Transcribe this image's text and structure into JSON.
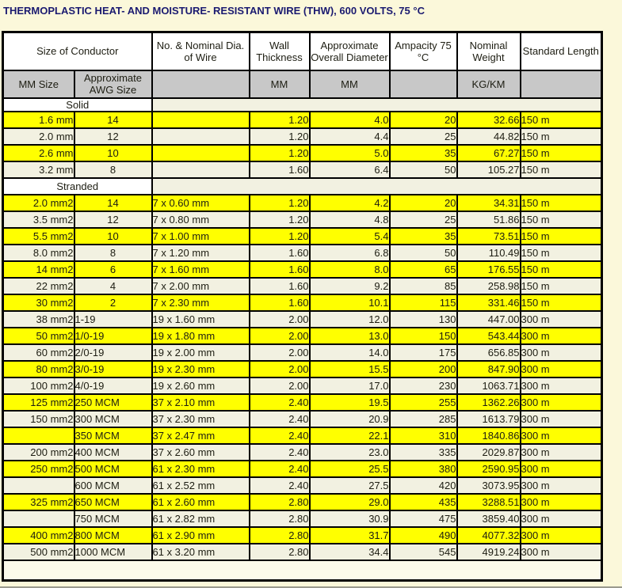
{
  "title": "THERMOPLASTIC HEAT- AND MOISTURE- RESISTANT WIRE (THW), 600 VOLTS, 75 °C",
  "colors": {
    "page_bg": "#fbf8da",
    "highlight_yellow": "#ffff00",
    "row_cream": "#f2f1e1",
    "subheader_gray": "#c8c8c8",
    "header_white": "#ffffff",
    "border_black": "#000000",
    "title_navy": "#1a1a70"
  },
  "table": {
    "headers": {
      "size_of_conductor": "Size of Conductor",
      "cols": [
        "No. & Nominal Dia. of Wire",
        "Wall Thickness",
        "Approximate Overall Diameter",
        "Ampacity 75 °C",
        "Nominal Weight",
        "Standard Length"
      ],
      "sub": [
        "MM Size",
        "Approximate AWG Size",
        "",
        "MM",
        "MM",
        "",
        "KG/KM",
        ""
      ]
    },
    "rows": [
      {
        "type": "section",
        "label": "Solid"
      },
      {
        "type": "data",
        "hl": true,
        "mm": "1.6 mm",
        "awg": "14",
        "dia": "",
        "wall": "1.20",
        "od": "4.0",
        "amp": "20",
        "wt": "32.66",
        "len": "150 m"
      },
      {
        "type": "data",
        "hl": false,
        "mm": "2.0 mm",
        "awg": "12",
        "dia": "",
        "wall": "1.20",
        "od": "4.4",
        "amp": "25",
        "wt": "44.82",
        "len": "150 m"
      },
      {
        "type": "data",
        "hl": true,
        "mm": "2.6 mm",
        "awg": "10",
        "dia": "",
        "wall": "1.20",
        "od": "5.0",
        "amp": "35",
        "wt": "67.27",
        "len": "150 m"
      },
      {
        "type": "data",
        "hl": false,
        "mm": "3.2 mm",
        "awg": "8",
        "dia": "",
        "wall": "1.60",
        "od": "6.4",
        "amp": "50",
        "wt": "105.27",
        "len": "150 m"
      },
      {
        "type": "section",
        "label": "Stranded"
      },
      {
        "type": "data",
        "hl": true,
        "mm": "2.0 mm2",
        "awg": "14",
        "dia": "7 x 0.60 mm",
        "wall": "1.20",
        "od": "4.2",
        "amp": "20",
        "wt": "34.31",
        "len": "150 m"
      },
      {
        "type": "data",
        "hl": false,
        "mm": "3.5 mm2",
        "awg": "12",
        "dia": "7 x 0.80 mm",
        "wall": "1.20",
        "od": "4.8",
        "amp": "25",
        "wt": "51.86",
        "len": "150 m"
      },
      {
        "type": "data",
        "hl": true,
        "mm": "5.5 mm2",
        "awg": "10",
        "dia": "7 x 1.00 mm",
        "wall": "1.20",
        "od": "5.4",
        "amp": "35",
        "wt": "73.51",
        "len": "150 m"
      },
      {
        "type": "data",
        "hl": false,
        "mm": "8.0 mm2",
        "awg": "8",
        "dia": "7 x 1.20 mm",
        "wall": "1.60",
        "od": "6.8",
        "amp": "50",
        "wt": "110.49",
        "len": "150 m"
      },
      {
        "type": "data",
        "hl": true,
        "mm": "14 mm2",
        "awg": "6",
        "dia": "7 x 1.60 mm",
        "wall": "1.60",
        "od": "8.0",
        "amp": "65",
        "wt": "176.55",
        "len": "150 m"
      },
      {
        "type": "data",
        "hl": false,
        "mm": "22 mm2",
        "awg": "4",
        "dia": "7 x 2.00 mm",
        "wall": "1.60",
        "od": "9.2",
        "amp": "85",
        "wt": "258.98",
        "len": "150 m"
      },
      {
        "type": "data",
        "hl": true,
        "mm": "30 mm2",
        "awg": "2",
        "dia": "7 x 2.30 mm",
        "wall": "1.60",
        "od": "10.1",
        "amp": "115",
        "wt": "331.46",
        "len": "150 m"
      },
      {
        "type": "data",
        "hl": false,
        "mm": "38 mm2",
        "awg": "1-19",
        "dia": "19 x 1.60 mm",
        "wall": "2.00",
        "od": "12.0",
        "amp": "130",
        "wt": "447.00",
        "len": "300 m"
      },
      {
        "type": "data",
        "hl": true,
        "mm": "50 mm2",
        "awg": "1/0-19",
        "dia": "19 x 1.80 mm",
        "wall": "2.00",
        "od": "13.0",
        "amp": "150",
        "wt": "543.44",
        "len": "300 m"
      },
      {
        "type": "data",
        "hl": false,
        "mm": "60 mm2",
        "awg": "2/0-19",
        "dia": "19 x 2.00 mm",
        "wall": "2.00",
        "od": "14.0",
        "amp": "175",
        "wt": "656.85",
        "len": "300 m"
      },
      {
        "type": "data",
        "hl": true,
        "mm": "80 mm2",
        "awg": "3/0-19",
        "dia": "19 x 2.30 mm",
        "wall": "2.00",
        "od": "15.5",
        "amp": "200",
        "wt": "847.90",
        "len": "300 m"
      },
      {
        "type": "data",
        "hl": false,
        "mm": "100 mm2",
        "awg": "4/0-19",
        "dia": "19 x 2.60 mm",
        "wall": "2.00",
        "od": "17.0",
        "amp": "230",
        "wt": "1063.71",
        "len": "300 m"
      },
      {
        "type": "data",
        "hl": true,
        "mm": "125 mm2",
        "awg": "250 MCM",
        "dia": "37 x 2.10 mm",
        "wall": "2.40",
        "od": "19.5",
        "amp": "255",
        "wt": "1362.26",
        "len": "300 m"
      },
      {
        "type": "data",
        "hl": false,
        "mm": "150 mm2",
        "awg": "300 MCM",
        "dia": "37 x 2.30 mm",
        "wall": "2.40",
        "od": "20.9",
        "amp": "285",
        "wt": "1613.79",
        "len": "300 m"
      },
      {
        "type": "data",
        "hl": true,
        "mm": "",
        "awg": "350 MCM",
        "dia": "37 x 2.47 mm",
        "wall": "2.40",
        "od": "22.1",
        "amp": "310",
        "wt": "1840.86",
        "len": "300 m"
      },
      {
        "type": "data",
        "hl": false,
        "mm": "200 mm2",
        "awg": "400 MCM",
        "dia": "37 x 2.60 mm",
        "wall": "2.40",
        "od": "23.0",
        "amp": "335",
        "wt": "2029.87",
        "len": "300 m"
      },
      {
        "type": "data",
        "hl": true,
        "mm": "250 mm2",
        "awg": "500 MCM",
        "dia": "61 x 2.30 mm",
        "wall": "2.40",
        "od": "25.5",
        "amp": "380",
        "wt": "2590.95",
        "len": "300 m"
      },
      {
        "type": "data",
        "hl": false,
        "mm": "",
        "awg": "600 MCM",
        "dia": "61 x 2.52 mm",
        "wall": "2.40",
        "od": "27.5",
        "amp": "420",
        "wt": "3073.95",
        "len": "300 m"
      },
      {
        "type": "data",
        "hl": true,
        "mm": "325 mm2",
        "awg": "650 MCM",
        "dia": "61 x 2.60 mm",
        "wall": "2.80",
        "od": "29.0",
        "amp": "435",
        "wt": "3288.51",
        "len": "300 m"
      },
      {
        "type": "data",
        "hl": false,
        "mm": "",
        "awg": "750 MCM",
        "dia": "61 x 2.82 mm",
        "wall": "2.80",
        "od": "30.9",
        "amp": "475",
        "wt": "3859.40",
        "len": "300 m"
      },
      {
        "type": "data",
        "hl": true,
        "mm": "400 mm2",
        "awg": "800 MCM",
        "dia": "61 x 2.90 mm",
        "wall": "2.80",
        "od": "31.7",
        "amp": "490",
        "wt": "4077.32",
        "len": "300 m"
      },
      {
        "type": "data",
        "hl": false,
        "mm": "500 mm2",
        "awg": "1000 MCM",
        "dia": "61 x 3.20 mm",
        "wall": "2.80",
        "od": "34.4",
        "amp": "545",
        "wt": "4919.24",
        "len": "300 m"
      },
      {
        "type": "spacer"
      }
    ]
  }
}
